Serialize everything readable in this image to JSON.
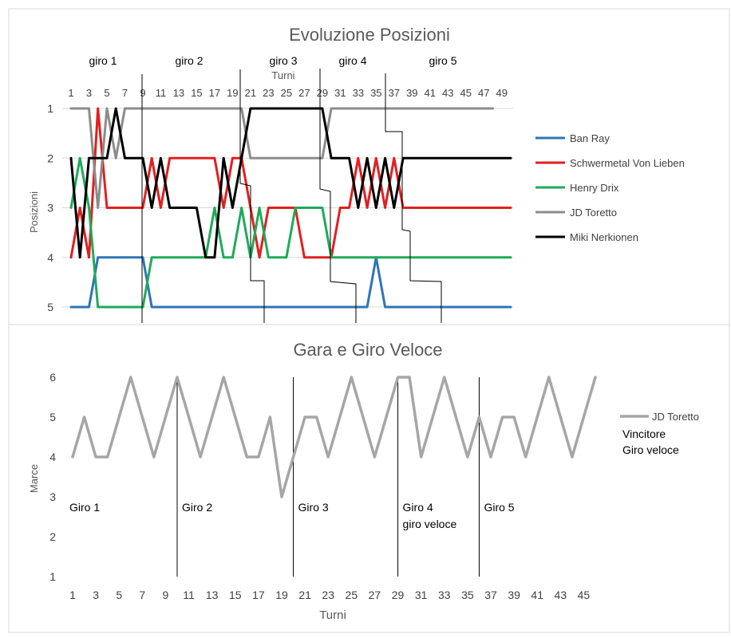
{
  "chart_data": [
    {
      "type": "line",
      "title": "Evoluzione Posizioni",
      "xlabel": "Turni",
      "ylabel": "Posizioni",
      "x_axis_position": "top",
      "y_inverted": true,
      "x_ticks": [
        "1",
        "3",
        "5",
        "7",
        "9",
        "11",
        "13",
        "15",
        "17",
        "19",
        "21",
        "23",
        "25",
        "27",
        "29",
        "31",
        "33",
        "35",
        "37",
        "39",
        "41",
        "43",
        "45",
        "47",
        "49"
      ],
      "y_ticks": [
        "1",
        "2",
        "3",
        "4",
        "5"
      ],
      "xlim": [
        1,
        50
      ],
      "ylim": [
        1,
        5
      ],
      "grid": "horizontal",
      "legend_position": "right",
      "annotations": [
        "giro 1",
        "giro 2",
        "giro 3",
        "giro 4",
        "giro 5"
      ],
      "series": [
        {
          "name": "Ban Ray",
          "color": "#2e75b6",
          "points": [
            [
              1,
              5
            ],
            [
              3,
              5
            ],
            [
              4,
              4
            ],
            [
              5,
              4
            ],
            [
              9,
              4
            ],
            [
              10,
              5
            ],
            [
              34,
              5
            ],
            [
              35,
              4
            ],
            [
              36,
              5
            ],
            [
              50,
              5
            ]
          ]
        },
        {
          "name": "Schwermetal Von Lieben",
          "color": "#e02020",
          "points": [
            [
              1,
              4
            ],
            [
              2,
              3
            ],
            [
              3,
              4
            ],
            [
              4,
              1
            ],
            [
              5,
              3
            ],
            [
              9,
              3
            ],
            [
              10,
              2
            ],
            [
              11,
              3
            ],
            [
              12,
              2
            ],
            [
              17,
              2
            ],
            [
              18,
              3
            ],
            [
              19,
              2
            ],
            [
              20,
              2
            ],
            [
              21,
              3
            ],
            [
              22,
              4
            ],
            [
              23,
              3
            ],
            [
              26,
              3
            ],
            [
              27,
              4
            ],
            [
              30,
              4
            ],
            [
              31,
              3
            ],
            [
              32,
              3
            ],
            [
              33,
              2
            ],
            [
              34,
              3
            ],
            [
              35,
              2
            ],
            [
              36,
              3
            ],
            [
              37,
              2
            ],
            [
              38,
              3
            ],
            [
              50,
              3
            ]
          ]
        },
        {
          "name": "Henry Drix",
          "color": "#1faa59",
          "points": [
            [
              1,
              3
            ],
            [
              2,
              2
            ],
            [
              3,
              3
            ],
            [
              4,
              5
            ],
            [
              9,
              5
            ],
            [
              10,
              4
            ],
            [
              16,
              4
            ],
            [
              17,
              3
            ],
            [
              18,
              4
            ],
            [
              19,
              4
            ],
            [
              20,
              3
            ],
            [
              21,
              4
            ],
            [
              22,
              3
            ],
            [
              23,
              4
            ],
            [
              25,
              4
            ],
            [
              26,
              3
            ],
            [
              29,
              3
            ],
            [
              30,
              4
            ],
            [
              50,
              4
            ]
          ]
        },
        {
          "name": "JD Toretto",
          "color": "#8c8c8c",
          "points": [
            [
              1,
              1
            ],
            [
              3,
              1
            ],
            [
              4,
              3
            ],
            [
              5,
              1
            ],
            [
              6,
              2
            ],
            [
              7,
              1
            ],
            [
              20,
              1
            ],
            [
              21,
              2
            ],
            [
              29,
              2
            ],
            [
              30,
              1
            ],
            [
              48,
              1
            ]
          ]
        },
        {
          "name": "Miki Nerkionen",
          "color": "#000000",
          "points": [
            [
              1,
              2
            ],
            [
              2,
              4
            ],
            [
              3,
              2
            ],
            [
              5,
              2
            ],
            [
              6,
              1
            ],
            [
              7,
              2
            ],
            [
              9,
              2
            ],
            [
              10,
              3
            ],
            [
              11,
              2
            ],
            [
              12,
              3
            ],
            [
              15,
              3
            ],
            [
              16,
              4
            ],
            [
              17,
              4
            ],
            [
              18,
              2
            ],
            [
              19,
              3
            ],
            [
              20,
              2
            ],
            [
              21,
              1
            ],
            [
              29,
              1
            ],
            [
              30,
              2
            ],
            [
              31,
              2
            ],
            [
              32,
              2
            ],
            [
              33,
              3
            ],
            [
              34,
              2
            ],
            [
              35,
              3
            ],
            [
              36,
              2
            ],
            [
              37,
              3
            ],
            [
              38,
              2
            ],
            [
              50,
              2
            ]
          ]
        }
      ]
    },
    {
      "type": "line",
      "title": "Gara e Giro Veloce",
      "xlabel": "Turni",
      "ylabel": "Marce",
      "x_ticks": [
        "1",
        "3",
        "5",
        "7",
        "9",
        "11",
        "13",
        "15",
        "17",
        "19",
        "21",
        "23",
        "25",
        "27",
        "29",
        "31",
        "33",
        "35",
        "37",
        "39",
        "41",
        "43",
        "45"
      ],
      "y_ticks": [
        "1",
        "2",
        "3",
        "4",
        "5",
        "6"
      ],
      "xlim": [
        1,
        46
      ],
      "ylim": [
        1,
        6
      ],
      "grid": "none",
      "legend_position": "right",
      "legend_note": [
        "Vincitore",
        "Giro veloce"
      ],
      "lap_labels": [
        {
          "text": "Giro 1",
          "x": 1
        },
        {
          "text": "Giro 2",
          "x": 10
        },
        {
          "text": "Giro 3",
          "x": 20
        },
        {
          "text": "Giro 4",
          "x": 29,
          "sub": "giro veloce"
        },
        {
          "text": "Giro 5",
          "x": 36
        }
      ],
      "lap_dividers": [
        10,
        20,
        29,
        36
      ],
      "series": [
        {
          "name": "JD Toretto",
          "color": "#a6a6a6",
          "values": [
            4,
            5,
            4,
            4,
            5,
            6,
            5,
            4,
            5,
            6,
            5,
            4,
            5,
            6,
            5,
            4,
            4,
            5,
            3,
            4,
            5,
            5,
            4,
            5,
            6,
            5,
            4,
            5,
            6,
            6,
            4,
            5,
            6,
            5,
            4,
            5,
            4,
            5,
            5,
            4,
            5,
            6,
            5,
            4,
            5,
            6
          ]
        }
      ]
    }
  ]
}
